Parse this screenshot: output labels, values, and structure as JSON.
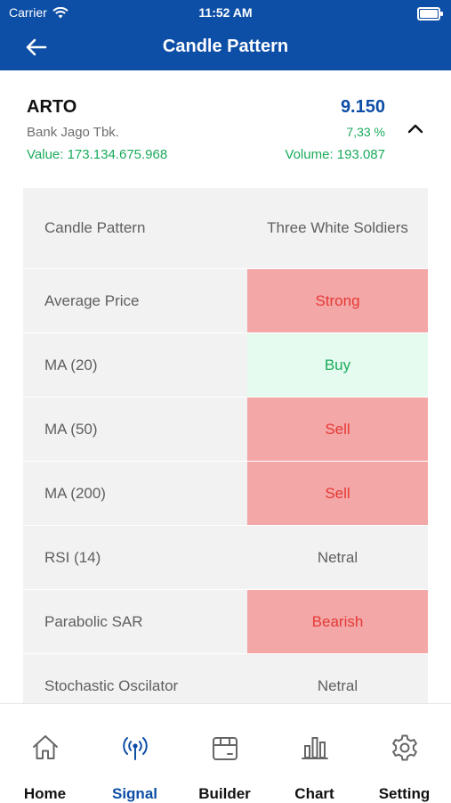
{
  "status_bar": {
    "carrier": "Carrier",
    "time": "11:52 AM"
  },
  "header": {
    "title": "Candle Pattern"
  },
  "stock": {
    "ticker": "ARTO",
    "company": "Bank Jago Tbk.",
    "price": "9.150",
    "change_pct": "7,33 %",
    "value_text": "Value:  173.134.675.968",
    "volume_text": "Volume:  193.087"
  },
  "table": {
    "rows": [
      {
        "label": "Candle Pattern",
        "value": "Three White Soldiers",
        "status": "neutral"
      },
      {
        "label": "Average Price",
        "value": "Strong",
        "status": "red"
      },
      {
        "label": "MA (20)",
        "value": "Buy",
        "status": "green"
      },
      {
        "label": "MA (50)",
        "value": "Sell",
        "status": "red"
      },
      {
        "label": "MA (200)",
        "value": "Sell",
        "status": "red"
      },
      {
        "label": "RSI (14)",
        "value": "Netral",
        "status": "neutral"
      },
      {
        "label": "Parabolic SAR",
        "value": "Bearish",
        "status": "red"
      },
      {
        "label": "Stochastic Oscilator",
        "value": "Netral",
        "status": "neutral"
      }
    ]
  },
  "tabs": [
    {
      "label": "Home",
      "icon": "home-icon"
    },
    {
      "label": "Signal",
      "icon": "signal-icon",
      "active": true
    },
    {
      "label": "Builder",
      "icon": "builder-icon"
    },
    {
      "label": "Chart",
      "icon": "chart-icon"
    },
    {
      "label": "Setting",
      "icon": "gear-icon"
    }
  ],
  "colors": {
    "primary": "#0d4ea6",
    "positive": "#1aaa5c",
    "negative": "#e53935",
    "negative_bg": "#f3a7a7",
    "positive_bg": "#e5fbef"
  }
}
